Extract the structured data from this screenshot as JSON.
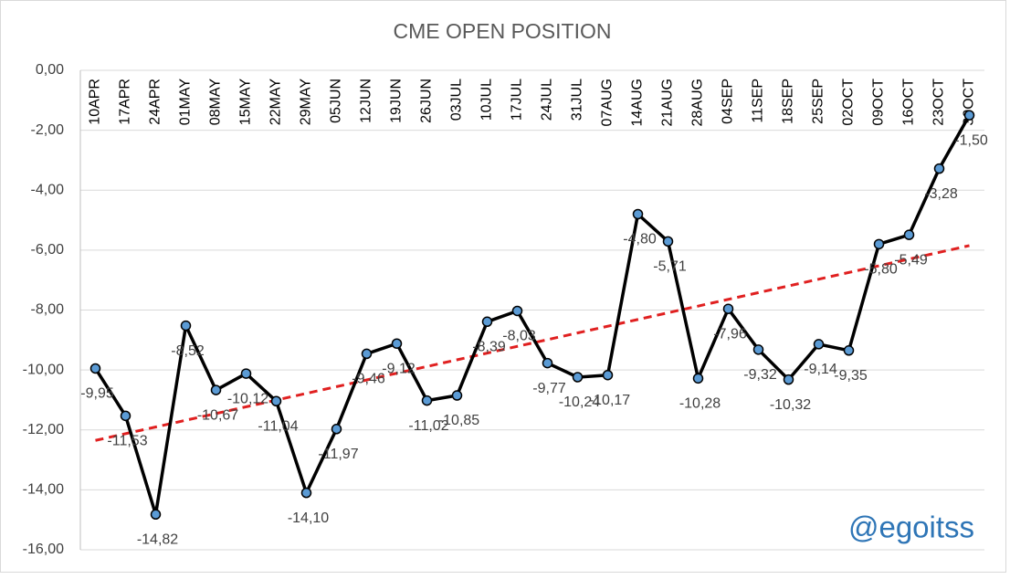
{
  "chart_data": {
    "type": "line",
    "title": "CME OPEN POSITION",
    "categories": [
      "10APR",
      "17APR",
      "24APR",
      "01MAY",
      "08MAY",
      "15MAY",
      "22MAY",
      "29MAY",
      "05JUN",
      "12JUN",
      "19JUN",
      "26JUN",
      "03JUL",
      "10JUL",
      "17JUL",
      "24JUL",
      "31JUL",
      "07AUG",
      "14AUG",
      "21AUG",
      "28AUG",
      "04SEP",
      "11SEP",
      "18SEP",
      "25SEP",
      "02OCT",
      "09OCT",
      "16OCT",
      "23OCT",
      "30OCT"
    ],
    "series": [
      {
        "color": "#000000",
        "marker_color": "#5b9bd5",
        "values": [
          -9.95,
          -11.53,
          -14.82,
          -8.52,
          -10.67,
          -10.12,
          -11.04,
          -14.1,
          -11.97,
          -9.46,
          -9.12,
          -11.02,
          -10.85,
          -8.39,
          -8.03,
          -9.77,
          -10.24,
          -10.17,
          -4.8,
          -5.71,
          -10.28,
          -7.96,
          -9.32,
          -10.32,
          -9.14,
          -9.35,
          -5.8,
          -5.49,
          -3.28,
          -1.5
        ],
        "value_labels": [
          "-9,95",
          "-11,53",
          "-14,82",
          "-8,52",
          "-10,67",
          "-10,12",
          "-11,04",
          "-14,10",
          "-11,97",
          "-9,46",
          "-9,12",
          "-11,02",
          "-10,85",
          "-8,39",
          "-8,03",
          "-9,77",
          "-10,24",
          "-10,17",
          "-4,80",
          "-5,71",
          "-10,28",
          "-7,96",
          "-9,32",
          "-10,32",
          "-9,14",
          "-9,35",
          "-5,80",
          "-5,49",
          "-3,28",
          "-1,50"
        ]
      }
    ],
    "trendline": {
      "color": "#e02020",
      "start": -12.35,
      "end": -5.85
    },
    "ylim": [
      -16,
      0
    ],
    "yticks": [
      {
        "value": 0,
        "label": "0,00"
      },
      {
        "value": -2,
        "label": "-2,00"
      },
      {
        "value": -4,
        "label": "-4,00"
      },
      {
        "value": -6,
        "label": "-6,00"
      },
      {
        "value": -8,
        "label": "-8,00"
      },
      {
        "value": -10,
        "label": "-10,00"
      },
      {
        "value": -12,
        "label": "-12,00"
      },
      {
        "value": -14,
        "label": "-14,00"
      },
      {
        "value": -16,
        "label": "-16,00"
      }
    ],
    "grid": true,
    "annotation": "@egoitss"
  }
}
